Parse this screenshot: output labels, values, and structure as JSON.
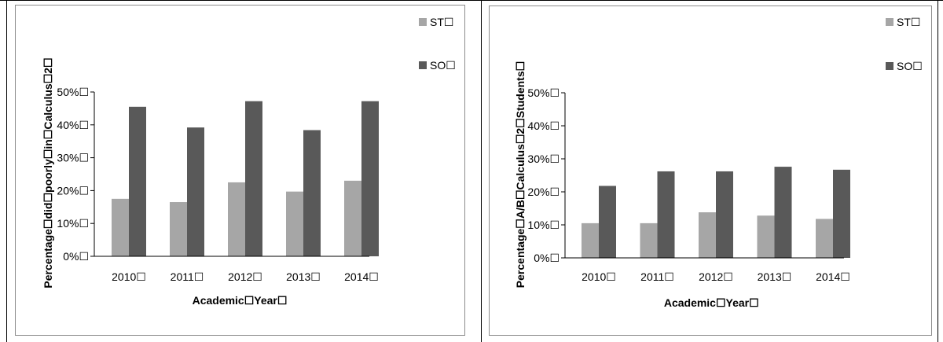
{
  "colors": {
    "ST": "#a6a6a6",
    "SO": "#595959",
    "axis": "#8c8c8c"
  },
  "chart_data": [
    {
      "type": "bar",
      "categories": [
        "2010☐",
        "2011☐",
        "2012☐",
        "2013☐",
        "2014☐"
      ],
      "series": [
        {
          "name": "ST☐",
          "values": [
            0.175,
            0.165,
            0.225,
            0.197,
            0.23
          ]
        },
        {
          "name": "SO☐",
          "values": [
            0.455,
            0.392,
            0.472,
            0.384,
            0.472
          ]
        }
      ],
      "yticks": [
        "0%☐",
        "10%☐",
        "20%☐",
        "30%☐",
        "40%☐",
        "50%☐"
      ],
      "ylim": [
        0,
        0.5
      ],
      "xlabel": "Academic☐Year☐",
      "ylabel": "Percentage☐did☐poorly☐in☐Calculus☐2☐",
      "legend_position": "top-right",
      "grid": false
    },
    {
      "type": "bar",
      "categories": [
        "2010☐",
        "2011☐",
        "2012☐",
        "2013☐",
        "2014☐"
      ],
      "series": [
        {
          "name": "ST☐",
          "values": [
            0.105,
            0.105,
            0.138,
            0.128,
            0.118
          ]
        },
        {
          "name": "SO☐",
          "values": [
            0.218,
            0.262,
            0.262,
            0.276,
            0.267
          ]
        }
      ],
      "yticks": [
        "0%☐",
        "10%☐",
        "20%☐",
        "30%☐",
        "40%☐",
        "50%☐"
      ],
      "ylim": [
        0,
        0.5
      ],
      "xlabel": "Academic☐Year☐",
      "ylabel": "Percentage☐A/B☐Calculus☐2☐Students☐",
      "legend_position": "top-right",
      "grid": false
    }
  ]
}
